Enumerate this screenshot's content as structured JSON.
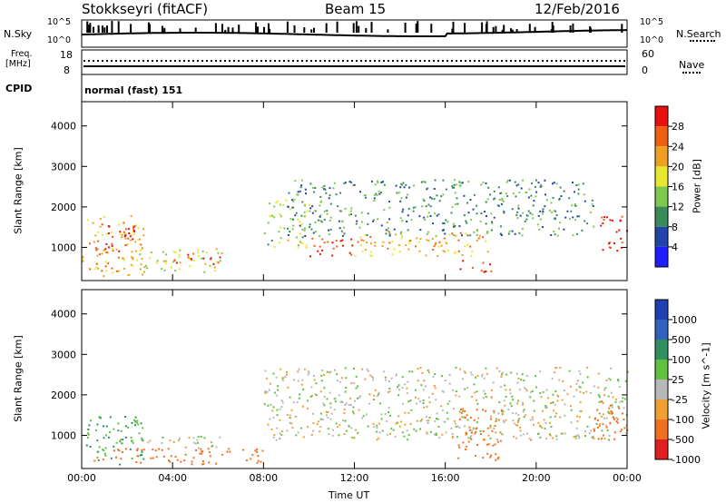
{
  "header": {
    "station": "Stokkseyri (fitACF)",
    "beam": "Beam 15",
    "date": "12/Feb/2016"
  },
  "noise_panel": {
    "left_label": "N.Sky",
    "right_label": "N.Search",
    "ticks": [
      "10^5",
      "10^0"
    ]
  },
  "freq_panel": {
    "left_label_1": "Freq.",
    "left_label_2": "[MHz]",
    "left_ticks": [
      "18",
      "8"
    ],
    "right_label": "Nave",
    "right_ticks": [
      "60",
      "0"
    ]
  },
  "cpid_panel": {
    "label": "CPID",
    "mode": "normal (fast) 151"
  },
  "colors": {
    "power": [
      "#1e1eff",
      "#2244aa",
      "#3a8a5a",
      "#7ec850",
      "#e8e830",
      "#f0a020",
      "#f06010",
      "#e81010"
    ],
    "velocity": [
      "#1e40b0",
      "#3060c0",
      "#309060",
      "#60c040",
      "#b8b8b8",
      "#f0a030",
      "#f07020",
      "#e02020"
    ]
  },
  "chart_data": [
    {
      "type": "heatmap",
      "title": "",
      "xlabel": "",
      "ylabel": "Slant Range [km]",
      "x_range": [
        "00:00",
        "24:00"
      ],
      "y_range": [
        180,
        4600
      ],
      "x_ticks": [
        "00:00",
        "04:00",
        "08:00",
        "12:00",
        "16:00",
        "20:00",
        "00:00"
      ],
      "y_ticks": [
        1000,
        2000,
        3000,
        4000
      ],
      "colorbar": {
        "label": "Power [dB]",
        "ticks": [
          "4",
          "8",
          "12",
          "16",
          "20",
          "24",
          "28"
        ],
        "range": [
          0,
          30
        ]
      },
      "features": [
        {
          "t0": 0.0,
          "t1": 2.7,
          "r0": 300,
          "r1": 1800,
          "level": 20
        },
        {
          "t0": 1.0,
          "t1": 2.3,
          "r0": 900,
          "r1": 1700,
          "level": 28
        },
        {
          "t0": 2.5,
          "t1": 6.2,
          "r0": 400,
          "r1": 1000,
          "level": 16
        },
        {
          "t0": 4.0,
          "t1": 6.1,
          "r0": 600,
          "r1": 900,
          "level": 28
        },
        {
          "t0": 8.0,
          "t1": 10.0,
          "r0": 1000,
          "r1": 2200,
          "level": 14
        },
        {
          "t0": 10.0,
          "t1": 12.0,
          "r0": 800,
          "r1": 1300,
          "level": 28
        },
        {
          "t0": 12.0,
          "t1": 18.0,
          "r0": 800,
          "r1": 1400,
          "level": 20
        },
        {
          "t0": 9.0,
          "t1": 22.5,
          "r0": 1300,
          "r1": 2700,
          "level": 10
        },
        {
          "t0": 16.5,
          "t1": 18.0,
          "r0": 400,
          "r1": 700,
          "level": 28
        },
        {
          "t0": 22.8,
          "t1": 24.0,
          "r0": 900,
          "r1": 1800,
          "level": 28
        }
      ]
    },
    {
      "type": "heatmap",
      "title": "",
      "xlabel": "Time UT",
      "ylabel": "Slant Range [km]",
      "x_range": [
        "00:00",
        "24:00"
      ],
      "y_range": [
        180,
        4600
      ],
      "x_ticks": [
        "00:00",
        "04:00",
        "08:00",
        "12:00",
        "16:00",
        "20:00",
        "00:00"
      ],
      "y_ticks": [
        1000,
        2000,
        3000,
        4000
      ],
      "colorbar": {
        "label": "Velocity [m s^-1]",
        "ticks": [
          "1000",
          "500",
          "100",
          "25",
          "-25",
          "-100",
          "-500",
          "-1000"
        ],
        "range": [
          -1250,
          1250
        ]
      },
      "features": [
        {
          "t0": 0.0,
          "t1": 2.7,
          "r0": 300,
          "r1": 1500,
          "level": 100
        },
        {
          "t0": 2.5,
          "t1": 6.2,
          "r0": 700,
          "r1": 1000,
          "level": 0
        },
        {
          "t0": 0.5,
          "t1": 8.0,
          "r0": 300,
          "r1": 700,
          "level": -300
        },
        {
          "t0": 8.0,
          "t1": 24.0,
          "r0": 900,
          "r1": 2700,
          "level": 0
        },
        {
          "t0": 16.5,
          "t1": 18.5,
          "r0": 400,
          "r1": 1700,
          "level": -400
        },
        {
          "t0": 22.5,
          "t1": 24.0,
          "r0": 900,
          "r1": 1900,
          "level": -200
        }
      ]
    }
  ]
}
